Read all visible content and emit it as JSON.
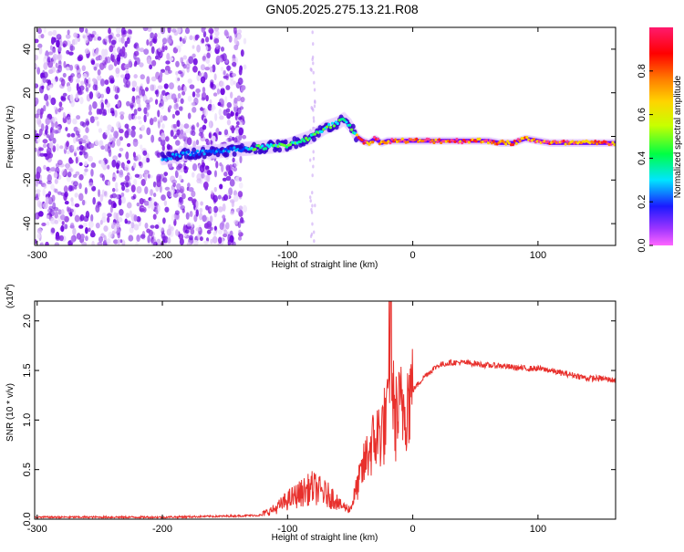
{
  "title": "GN05.2025.275.13.21.R08",
  "colors": {
    "snr_line": "#e8302c",
    "axis": "#000000",
    "colormap": [
      "#ff00ff",
      "#6600ff",
      "#0033ff",
      "#00e5ff",
      "#00ff44",
      "#c8ff00",
      "#ffd400",
      "#ff8000",
      "#ff0000",
      "#ff1a6e"
    ]
  },
  "chart_data": [
    {
      "type": "heatmap",
      "title": "GN05.2025.275.13.21.R08",
      "xlabel": "Height of straight line (km)",
      "ylabel": "Frequency (Hz)",
      "xlim": [
        -302,
        162
      ],
      "ylim": [
        -50,
        50
      ],
      "x_ticks": [
        -300,
        -200,
        -100,
        0,
        100
      ],
      "y_ticks": [
        -40,
        -20,
        0,
        20,
        40
      ],
      "colorbar": {
        "label": "Normalized spectral amplitude",
        "range": [
          0,
          1
        ],
        "ticks": [
          0.0,
          0.2,
          0.4,
          0.6,
          0.8
        ]
      },
      "ridge": {
        "x": [
          -200,
          -180,
          -160,
          -140,
          -120,
          -100,
          -80,
          -70,
          -60,
          -55,
          -50,
          -45,
          -40,
          -35,
          -30,
          -25,
          -20,
          -10,
          0,
          20,
          40,
          60,
          70,
          80,
          90,
          100,
          110,
          120,
          140,
          162
        ],
        "frequency": [
          -10,
          -8,
          -7,
          -6,
          -5,
          -4,
          0,
          4,
          6,
          8,
          5,
          0,
          -2,
          -3,
          -1,
          -3,
          -2,
          -2,
          -2,
          -2,
          -2,
          -2,
          -3,
          -3,
          -1,
          -2,
          -3,
          -3,
          -3,
          -3
        ]
      }
    },
    {
      "type": "line",
      "xlabel": "Height of straight line (km)",
      "ylabel": "SNR (10 * v/v)",
      "y_multiplier": "(x10",
      "y_multiplier_exp": "4",
      "y_multiplier_close": ")",
      "xlim": [
        -302,
        162
      ],
      "ylim": [
        0,
        2.2
      ],
      "x_ticks": [
        -300,
        -200,
        -100,
        0,
        100
      ],
      "y_ticks": [
        0.0,
        0.5,
        1.0,
        1.5,
        2.0
      ],
      "series": [
        {
          "x": [
            -302,
            -250,
            -200,
            -150,
            -120,
            -110,
            -100,
            -90,
            -80,
            -70,
            -60,
            -50,
            -45,
            -40,
            -35,
            -30,
            -25,
            -20,
            -18,
            -15,
            -10,
            -5,
            0,
            10,
            20,
            30,
            40,
            50,
            60,
            70,
            80,
            90,
            100,
            110,
            120,
            130,
            140,
            150,
            162
          ],
          "y": [
            0.02,
            0.02,
            0.02,
            0.03,
            0.04,
            0.08,
            0.15,
            0.2,
            0.25,
            0.2,
            0.15,
            0.1,
            0.3,
            0.5,
            0.7,
            0.8,
            0.9,
            1.0,
            2.15,
            1.0,
            1.1,
            1.2,
            1.3,
            1.45,
            1.55,
            1.58,
            1.58,
            1.57,
            1.55,
            1.55,
            1.53,
            1.52,
            1.52,
            1.5,
            1.47,
            1.45,
            1.42,
            1.42,
            1.4
          ]
        }
      ]
    }
  ]
}
